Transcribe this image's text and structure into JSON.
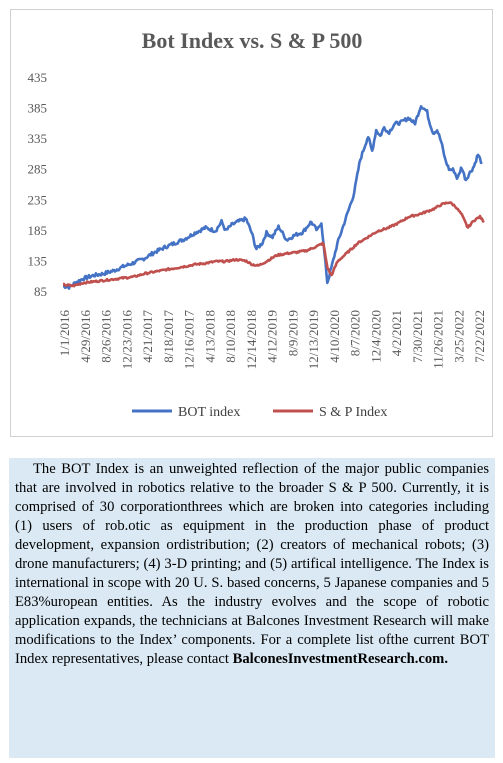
{
  "chart_data": {
    "type": "line",
    "title": "Bot Index vs. S & P 500",
    "xlabel": "",
    "ylabel": "",
    "ylim": [
      85,
      435
    ],
    "yticks": [
      85,
      135,
      185,
      235,
      285,
      335,
      385,
      435
    ],
    "xticks": [
      "1/1/2016",
      "4/29/2016",
      "8/26/2016",
      "12/23/2016",
      "4/21/2017",
      "8/18/2017",
      "12/16/2017",
      "4/13/2018",
      "8/10/2018",
      "12/14/2018",
      "4/12/2019",
      "8/9/2019",
      "12/13/2019",
      "4/10/2020",
      "8/7/2020",
      "12/4/2020",
      "4/2/2021",
      "7/30/2021",
      "11/26/2021",
      "3/25/2022",
      "7/22/2022"
    ],
    "xrange": [
      0,
      20.7
    ],
    "legend": "bottom",
    "grid": false,
    "series": [
      {
        "name": "BOT index",
        "color": "#4472c4",
        "x": [
          0,
          0.3,
          0.6,
          1,
          1.5,
          2,
          2.5,
          3,
          3.5,
          4,
          4.5,
          5,
          5.5,
          6,
          6.5,
          7,
          7.5,
          7.8,
          8,
          8.3,
          8.6,
          9,
          9.3,
          9.5,
          9.8,
          10,
          10.3,
          10.6,
          11,
          11.4,
          11.8,
          12.2,
          12.5,
          12.7,
          12.8,
          13,
          13.2,
          13.5,
          14,
          14.3,
          14.6,
          15,
          15.2,
          15.4,
          15.6,
          15.8,
          16,
          16.3,
          16.6,
          17,
          17.3,
          17.6,
          17.9,
          18,
          18.2,
          18.4,
          18.6,
          18.8,
          19,
          19.2,
          19.4,
          19.6,
          19.8,
          20,
          20.2,
          20.4,
          20.6
        ],
        "values": [
          95,
          93,
          100,
          107,
          112,
          115,
          120,
          127,
          133,
          140,
          150,
          158,
          165,
          172,
          182,
          190,
          185,
          200,
          185,
          195,
          200,
          205,
          180,
          155,
          165,
          182,
          175,
          192,
          170,
          178,
          183,
          200,
          185,
          200,
          165,
          100,
          125,
          165,
          215,
          245,
          300,
          340,
          315,
          350,
          340,
          355,
          345,
          360,
          362,
          370,
          360,
          390,
          380,
          365,
          345,
          350,
          330,
          300,
          285,
          285,
          270,
          290,
          268,
          280,
          290,
          310,
          295
        ],
        "noise": 3
      },
      {
        "name": "S & P Index",
        "color": "#c0504d",
        "x": [
          0,
          0.5,
          1,
          1.5,
          2,
          2.5,
          3,
          3.5,
          4,
          4.5,
          5,
          5.5,
          6,
          6.5,
          7,
          7.5,
          8,
          8.5,
          9,
          9.3,
          9.6,
          10,
          10.5,
          11,
          11.5,
          12,
          12.5,
          12.8,
          13,
          13.2,
          13.5,
          14,
          14.5,
          15,
          15.5,
          16,
          16.5,
          17,
          17.5,
          18,
          18.3,
          18.6,
          19,
          19.3,
          19.6,
          19.9,
          20.2,
          20.5,
          20.7
        ],
        "values": [
          97,
          95,
          100,
          102,
          104,
          106,
          108,
          110,
          115,
          118,
          121,
          124,
          127,
          130,
          132,
          135,
          135,
          138,
          136,
          130,
          128,
          135,
          145,
          148,
          150,
          153,
          160,
          165,
          125,
          112,
          135,
          150,
          165,
          175,
          185,
          190,
          198,
          208,
          212,
          218,
          222,
          228,
          232,
          225,
          212,
          190,
          202,
          208,
          200
        ],
        "noise": 1.5
      }
    ]
  },
  "caption": {
    "text": "The BOT Index is an unweighted reflection of the major public companies that are involved in robotics relative to the broader S & P 500. Currently, it is comprised of 30 corporationthrees which are broken into categories including (1) users of rob.otic as equipment in the production phase of product development, expansion ordistribution; (2) creators of mechanical robots; (3) drone manufacturers; (4) 3-D printing; and (5) artifical intelligence. The Index is international in scope with 20 U. S. based concerns, 5 Japanese companies and 5 E83%uropean entities. As the industry evolves and the scope of robotic application expands, the technicians at Balcones Investment Research will make modifications to the Index’ components. For a  complete list ofthe current BOT Index representatives, please contact",
    "contact": "BalconesInvestmentResearch.com."
  }
}
